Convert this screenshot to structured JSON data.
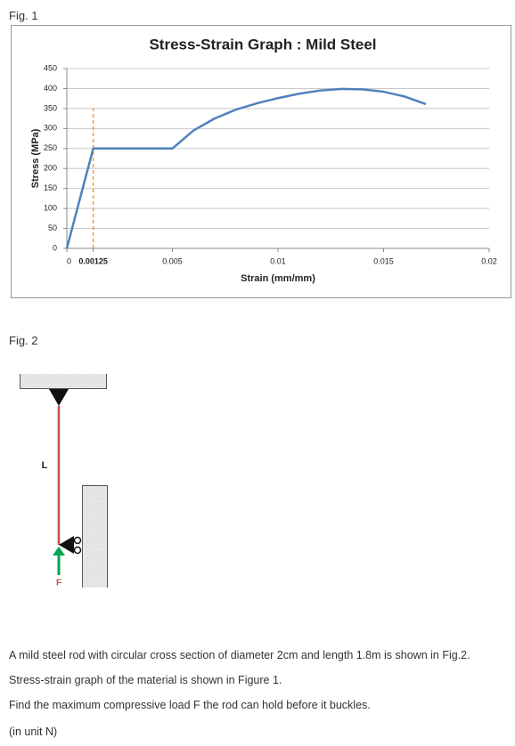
{
  "fig1_label": "Fig. 1",
  "chart_data": {
    "type": "line",
    "title": "Stress-Strain Graph : Mild Steel",
    "x_label": "Strain (mm/mm)",
    "y_label": "Stress (MPa)",
    "x": [
      0,
      0.00125,
      0.005,
      0.006,
      0.007,
      0.008,
      0.009,
      0.01,
      0.011,
      0.012,
      0.013,
      0.014,
      0.015,
      0.016,
      0.017
    ],
    "values": [
      0,
      250,
      250,
      295,
      325,
      347,
      363,
      376,
      387,
      395,
      399,
      398,
      392,
      380,
      361
    ],
    "color": "#4f81bd",
    "marker_color": "#f79646",
    "xlim": [
      0,
      0.02
    ],
    "xticks": [
      0,
      0.00125,
      0.005,
      0.01,
      0.015,
      0.02
    ],
    "ylim": [
      0,
      450
    ],
    "yticks": [
      0,
      50,
      100,
      150,
      200,
      250,
      300,
      350,
      400,
      450
    ],
    "grid": true
  },
  "fig2_label": "Fig. 2",
  "diagram": {
    "length_label": "L",
    "force_label": "F"
  },
  "text": [
    "A mild steel rod with circular cross section of diameter 2cm and length 1.8m is shown in Fig.2.",
    "Stress-strain graph of the material is shown in Figure 1.",
    "Find the maximum compressive load F the rod can hold before it buckles.",
    "(in unit N)"
  ]
}
